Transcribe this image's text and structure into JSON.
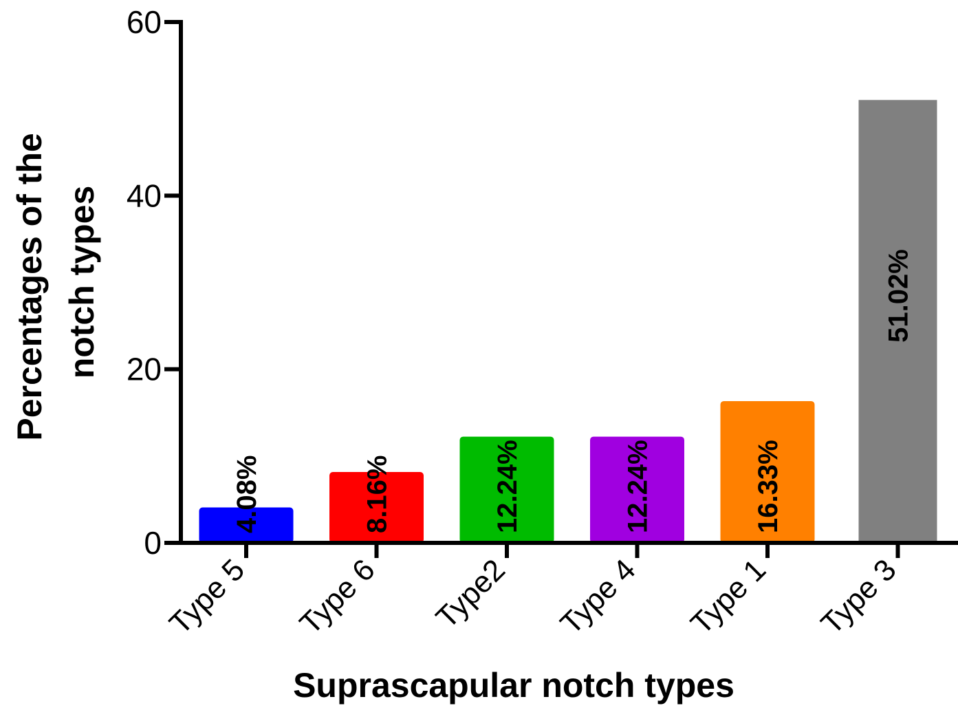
{
  "chart_data": {
    "type": "bar",
    "title": "",
    "xlabel": "Suprascapular notch types",
    "ylabel_lines": [
      "Percentages of the",
      "notch types"
    ],
    "ylim": [
      0,
      60
    ],
    "yticks": [
      0,
      20,
      40,
      60
    ],
    "grid": false,
    "categories": [
      "Type 5",
      "Type 6",
      "Type2",
      "Type 4",
      "Type 1",
      "Type 3"
    ],
    "values": [
      4.08,
      8.16,
      12.24,
      12.24,
      16.33,
      51.02
    ],
    "data_labels": [
      "4.08%",
      "8.16%",
      "12.24%",
      "12.24%",
      "16.33%",
      "51.02%"
    ],
    "colors": [
      "#0000FF",
      "#FF0000",
      "#00BB00",
      "#A000E0",
      "#FF8000",
      "#808080"
    ]
  }
}
